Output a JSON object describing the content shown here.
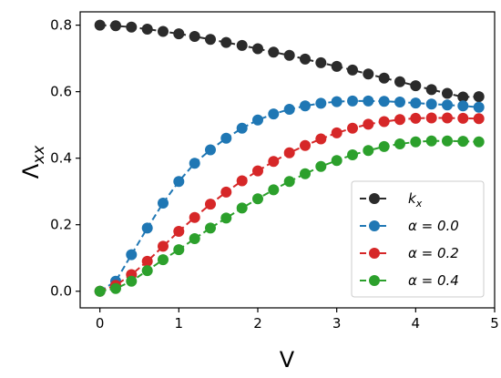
{
  "chart_data": {
    "type": "line",
    "xlabel": "V",
    "ylabel": "Λ",
    "ylabel_sub": "xx",
    "xlim": [
      -0.25,
      5.0
    ],
    "ylim": [
      -0.05,
      0.84
    ],
    "xticks": [
      0,
      1,
      2,
      3,
      4,
      5
    ],
    "xtick_labels": [
      "0",
      "1",
      "2",
      "3",
      "4",
      "5"
    ],
    "yticks": [
      0.0,
      0.2,
      0.4,
      0.6,
      0.8
    ],
    "ytick_labels": [
      "0.0",
      "0.2",
      "0.4",
      "0.6",
      "0.8"
    ],
    "grid": false,
    "legend_position": "lower-right",
    "x": [
      0.0,
      0.2,
      0.4,
      0.6,
      0.8,
      1.0,
      1.2,
      1.4,
      1.6,
      1.8,
      2.0,
      2.2,
      2.4,
      2.6,
      2.8,
      3.0,
      3.2,
      3.4,
      3.6,
      3.8,
      4.0,
      4.2,
      4.4,
      4.6,
      4.8
    ],
    "series": [
      {
        "name": "k",
        "name_sub": "x",
        "color": "#2b2b2b",
        "values": [
          0.8,
          0.798,
          0.794,
          0.788,
          0.781,
          0.774,
          0.766,
          0.757,
          0.748,
          0.739,
          0.729,
          0.719,
          0.709,
          0.698,
          0.687,
          0.676,
          0.665,
          0.653,
          0.641,
          0.63,
          0.618,
          0.606,
          0.595,
          0.584,
          0.585
        ]
      },
      {
        "name": "α = 0.0",
        "color": "#1f77b4",
        "values": [
          0.0,
          0.03,
          0.11,
          0.19,
          0.265,
          0.33,
          0.385,
          0.425,
          0.46,
          0.49,
          0.515,
          0.533,
          0.547,
          0.557,
          0.565,
          0.57,
          0.572,
          0.572,
          0.571,
          0.569,
          0.566,
          0.563,
          0.56,
          0.557,
          0.553
        ]
      },
      {
        "name": "α = 0.2",
        "color": "#d62728",
        "values": [
          0.0,
          0.018,
          0.05,
          0.09,
          0.135,
          0.18,
          0.222,
          0.262,
          0.298,
          0.332,
          0.362,
          0.39,
          0.416,
          0.438,
          0.458,
          0.476,
          0.49,
          0.502,
          0.51,
          0.516,
          0.52,
          0.521,
          0.521,
          0.52,
          0.519
        ]
      },
      {
        "name": "α = 0.4",
        "color": "#2ca02c",
        "values": [
          0.0,
          0.008,
          0.03,
          0.062,
          0.095,
          0.125,
          0.158,
          0.19,
          0.22,
          0.25,
          0.278,
          0.305,
          0.33,
          0.353,
          0.375,
          0.393,
          0.41,
          0.423,
          0.435,
          0.443,
          0.449,
          0.452,
          0.452,
          0.451,
          0.449
        ]
      }
    ]
  }
}
